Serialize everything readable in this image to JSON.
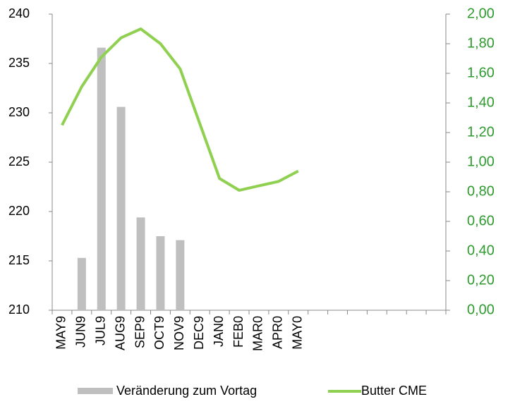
{
  "chart_data": {
    "type": "combo",
    "categories": [
      "MAY9",
      "JUN9",
      "JUL9",
      "AUG9",
      "SEP9",
      "OCT9",
      "NOV9",
      "DEC9",
      "JAN0",
      "FEB0",
      "MAR0",
      "APR0",
      "MAY0",
      null,
      null,
      null,
      null,
      null,
      null,
      null
    ],
    "series": [
      {
        "name": "Veränderung zum Vortag",
        "type": "bar",
        "color": "#bfbfbf",
        "values": [
          null,
          215.3,
          236.6,
          230.6,
          219.4,
          217.5,
          217.1,
          null,
          null,
          null,
          null,
          null,
          null,
          null,
          null,
          null,
          null,
          null,
          null,
          null
        ]
      },
      {
        "name": "Butter CME",
        "type": "line",
        "axis": "y2",
        "color": "#8fd050",
        "values": [
          1.25,
          1.51,
          1.71,
          1.84,
          1.9,
          1.8,
          1.63,
          1.26,
          0.89,
          0.81,
          0.84,
          0.87,
          0.94,
          null,
          null,
          null,
          null,
          null,
          null,
          null
        ]
      }
    ],
    "ylim": [
      210,
      240
    ],
    "yticks": [
      210,
      215,
      220,
      225,
      230,
      235,
      240
    ],
    "y2lim": [
      0,
      2
    ],
    "y2ticks": [
      {
        "value": 0,
        "label": "0,00"
      },
      {
        "value": 0.2,
        "label": "0,20"
      },
      {
        "value": 0.4,
        "label": "0,40"
      },
      {
        "value": 0.6,
        "label": "0,60"
      },
      {
        "value": 0.8,
        "label": "0,80"
      },
      {
        "value": 1,
        "label": "1,00"
      },
      {
        "value": 1.2,
        "label": "1,20"
      },
      {
        "value": 1.4,
        "label": "1,40"
      },
      {
        "value": 1.6,
        "label": "1,60"
      },
      {
        "value": 1.8,
        "label": "1,80"
      },
      {
        "value": 2,
        "label": "2,00"
      }
    ],
    "legend": "bottom"
  }
}
